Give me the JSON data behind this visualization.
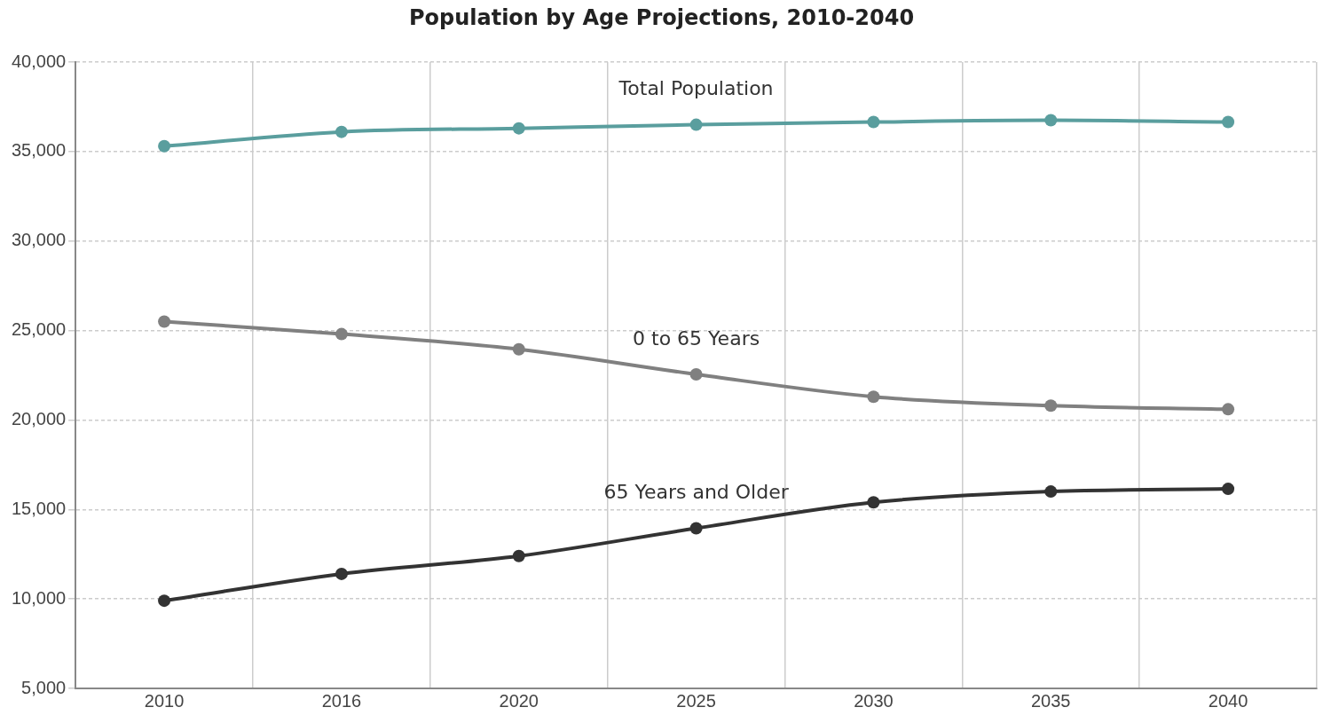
{
  "chart_data": {
    "type": "line",
    "title": "Population by Age Projections, 2010-2040",
    "categories": [
      "2010",
      "2016",
      "2020",
      "2025",
      "2030",
      "2035",
      "2040"
    ],
    "series": [
      {
        "name": "Total Population",
        "color": "#5a9e9e",
        "values": [
          35300,
          36100,
          36300,
          36500,
          36650,
          36750,
          36650
        ]
      },
      {
        "name": "0 to 65 Years",
        "color": "#808080",
        "values": [
          25500,
          24800,
          23950,
          22550,
          21300,
          20800,
          20600
        ]
      },
      {
        "name": "65 Years and Older",
        "color": "#333333",
        "values": [
          9900,
          11400,
          12400,
          13950,
          15400,
          16000,
          16150
        ]
      }
    ],
    "ylim": [
      5000,
      40000
    ],
    "yticks": [
      {
        "value": 5000,
        "label": "5,000"
      },
      {
        "value": 10000,
        "label": "10,000"
      },
      {
        "value": 15000,
        "label": "15,000"
      },
      {
        "value": 20000,
        "label": "20,000"
      },
      {
        "value": 25000,
        "label": "25,000"
      },
      {
        "value": 30000,
        "label": "30,000"
      },
      {
        "value": 35000,
        "label": "35,000"
      },
      {
        "value": 40000,
        "label": "40,000"
      }
    ],
    "grid": true,
    "legend": false,
    "marker": "circle",
    "line_style": "solid"
  }
}
